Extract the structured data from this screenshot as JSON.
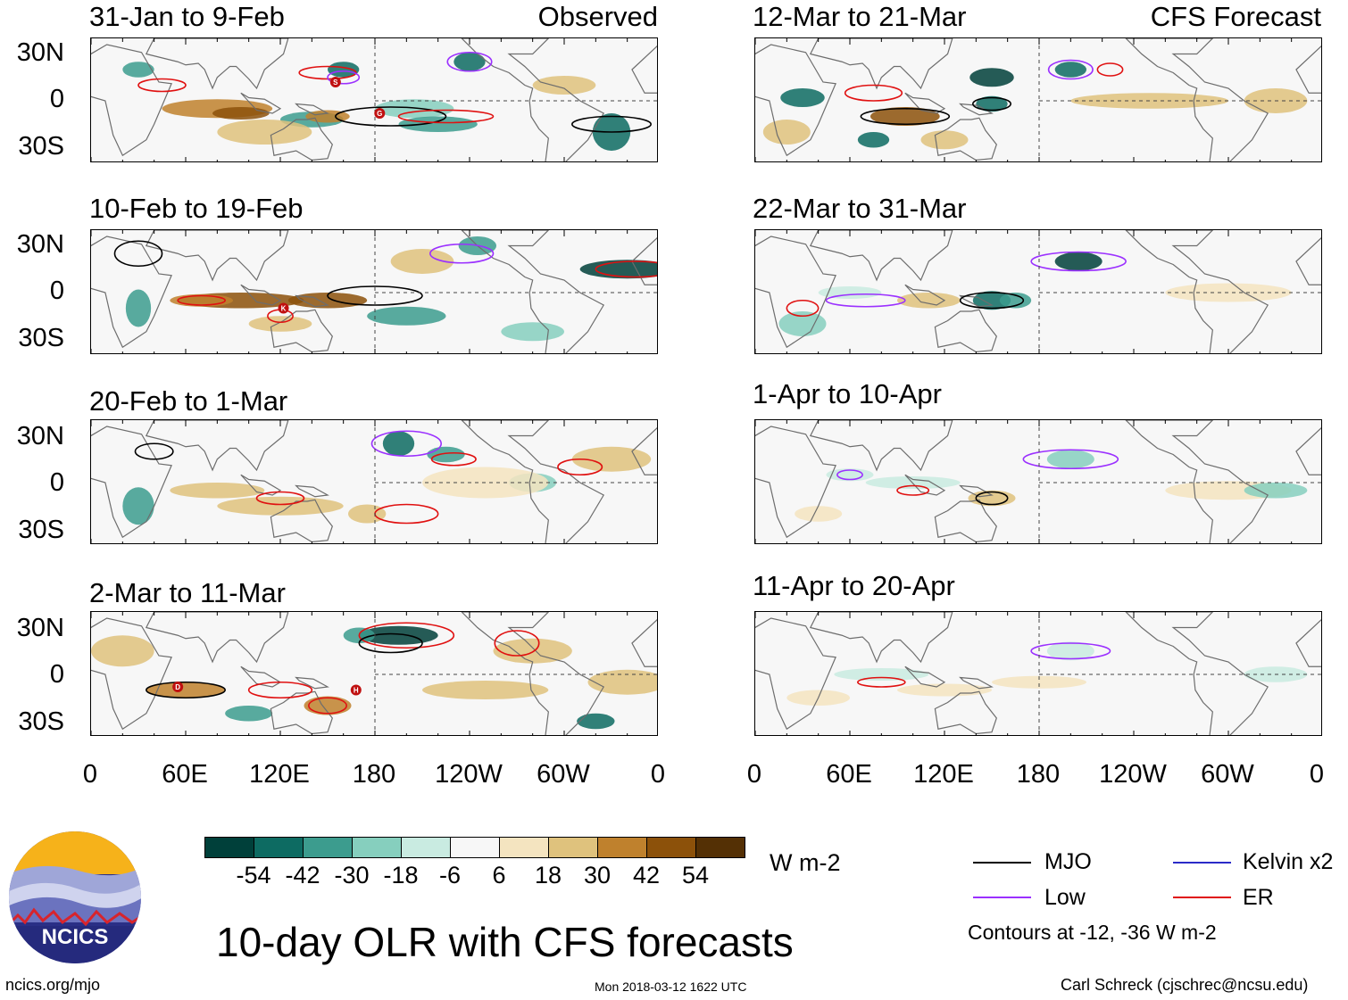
{
  "title": "10-day OLR with CFS forecasts",
  "logo": {
    "text": "NCICS",
    "link": "ncics.org/mjo"
  },
  "timestamp": "Mon 2018-03-12 1622 UTC",
  "author": "Carl Schreck (cjschrec@ncsu.edu)",
  "columns": {
    "observed": "Observed",
    "forecast": "CFS Forecast"
  },
  "panels_observed": [
    {
      "period": "31-Jan to 9-Feb"
    },
    {
      "period": "10-Feb to 19-Feb"
    },
    {
      "period": "20-Feb to 1-Mar"
    },
    {
      "period": "2-Mar to 11-Mar"
    }
  ],
  "panels_forecast": [
    {
      "period": "12-Mar to 21-Mar"
    },
    {
      "period": "22-Mar to 31-Mar"
    },
    {
      "period": "1-Apr to 10-Apr"
    },
    {
      "period": "11-Apr to 20-Apr"
    }
  ],
  "lat_labels": [
    "30N",
    "0",
    "30S"
  ],
  "lon_labels": [
    "0",
    "60E",
    "120E",
    "180",
    "120W",
    "60W",
    "0"
  ],
  "colorbar": {
    "units": "W m-2",
    "ticks": [
      "-54",
      "-42",
      "-30",
      "-18",
      "-6",
      "6",
      "18",
      "30",
      "42",
      "54"
    ],
    "colors": [
      "#00403a",
      "#0d6b62",
      "#3c9c8e",
      "#86cfbe",
      "#c9ebe1",
      "#f7f7f7",
      "#f4e4c0",
      "#dfc27d",
      "#bf812d",
      "#8c510a",
      "#543005"
    ]
  },
  "legend": {
    "items": [
      {
        "label": "MJO",
        "color": "#000000"
      },
      {
        "label": "Kelvin x2",
        "color": "#2b2bc8"
      },
      {
        "label": "Low",
        "color": "#9b30ff"
      },
      {
        "label": "ER",
        "color": "#e01010"
      }
    ],
    "note": "Contours at -12, -36 W m-2"
  },
  "storm_markers": [
    {
      "panel": 0,
      "letter": "S"
    },
    {
      "panel": 0,
      "letter": "G"
    },
    {
      "panel": 1,
      "letter": "K"
    },
    {
      "panel": 3,
      "letter": "D"
    },
    {
      "panel": 3,
      "letter": "H"
    }
  ]
}
